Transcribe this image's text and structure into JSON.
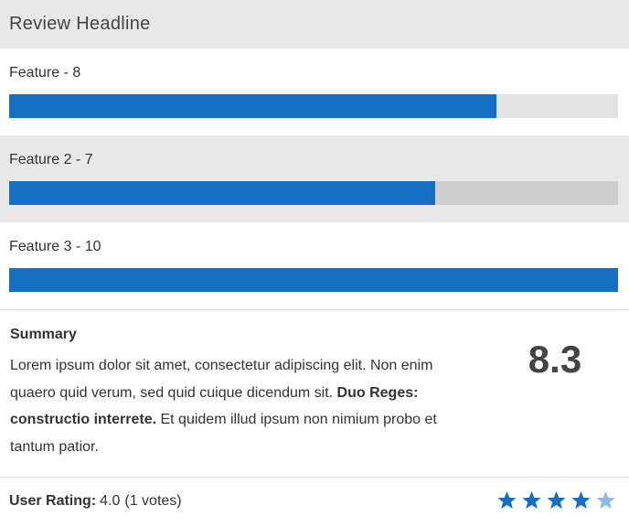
{
  "review": {
    "headline": "Review Headline",
    "features": [
      {
        "label": "Feature - 8",
        "score": 8,
        "max": 10
      },
      {
        "label": "Feature 2 - 7",
        "score": 7,
        "max": 10
      },
      {
        "label": "Feature 3 - 10",
        "score": 10,
        "max": 10
      }
    ],
    "summary": {
      "title": "Summary",
      "text_1": "Lorem ipsum dolor sit amet, consectetur adipiscing elit. Non enim quaero quid verum, sed quid cuique dicendum sit. ",
      "text_bold": "Duo Reges: constructio interrete.",
      "text_2": " Et quidem illud ipsum non nimium probo et tantum patior."
    },
    "score": "8.3",
    "user_rating": {
      "label": "User Rating:",
      "value": "4.0",
      "votes": "(1 votes)",
      "stars_filled": 4,
      "stars_total": 5
    }
  },
  "colors": {
    "bar_fill": "#1570c4",
    "star_filled": "#1570c4",
    "star_light": "#8fb8e3",
    "header_bg": "#e8e8e8"
  },
  "icons": {
    "star": "star-icon"
  }
}
